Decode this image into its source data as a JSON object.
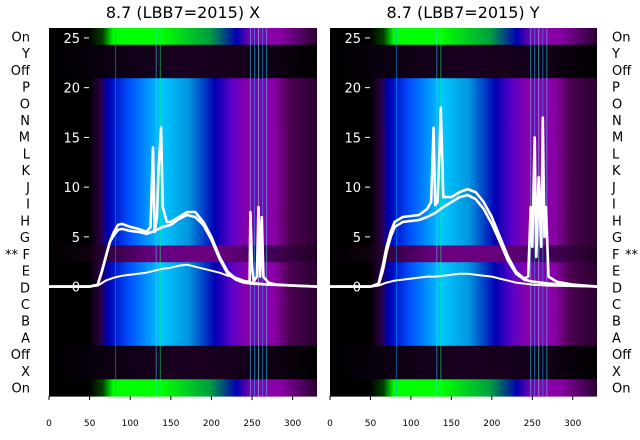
{
  "chart_data": [
    {
      "type": "heatmap",
      "title": "8.7 (LBB7=2015) X",
      "row_labels": [
        "On",
        "Y",
        "Off",
        "P",
        "O",
        "N",
        "M",
        "L",
        "K",
        "J",
        "I",
        "H",
        "G",
        "F",
        "E",
        "D",
        "C",
        "B",
        "A",
        "Off",
        "X",
        "On"
      ],
      "marked_row": "F",
      "marker_text": "**",
      "xlim": [
        0,
        330
      ],
      "x_ticks": [
        0,
        50,
        100,
        150,
        200,
        250,
        300
      ],
      "ylim": [
        -11,
        26
      ],
      "y_ticks": [
        0,
        5,
        10,
        15,
        20,
        25
      ],
      "colormap": [
        "#000000",
        "#4b0050",
        "#8a00a8",
        "#0000b4",
        "#0050ff",
        "#00c8ff",
        "#00ff00"
      ],
      "series": [
        {
          "values": [
            [
              0,
              0
            ],
            [
              50,
              0
            ],
            [
              60,
              0.2
            ],
            [
              65,
              1.5
            ],
            [
              70,
              3
            ],
            [
              75,
              4.5
            ],
            [
              80,
              5.5
            ],
            [
              85,
              6.2
            ],
            [
              90,
              6.3
            ],
            [
              100,
              6
            ],
            [
              110,
              5.8
            ],
            [
              120,
              5.5
            ],
            [
              125,
              6
            ],
            [
              128,
              14
            ],
            [
              130,
              5.5
            ],
            [
              133,
              7
            ],
            [
              135,
              12
            ],
            [
              138,
              16
            ],
            [
              140,
              8
            ],
            [
              145,
              6.5
            ],
            [
              150,
              6.5
            ],
            [
              160,
              7
            ],
            [
              170,
              7.5
            ],
            [
              180,
              7.5
            ],
            [
              190,
              6.5
            ],
            [
              200,
              5
            ],
            [
              210,
              3
            ],
            [
              220,
              1.5
            ],
            [
              230,
              0.8
            ],
            [
              240,
              0.5
            ],
            [
              247,
              0.5
            ],
            [
              248,
              7.5
            ],
            [
              250,
              2
            ],
            [
              252,
              0.5
            ],
            [
              256,
              1
            ],
            [
              258,
              8
            ],
            [
              260,
              1
            ],
            [
              262,
              7
            ],
            [
              264,
              1
            ],
            [
              270,
              0.4
            ],
            [
              280,
              0.2
            ],
            [
              300,
              0.1
            ],
            [
              330,
              0
            ]
          ]
        },
        {
          "values": [
            [
              0,
              0
            ],
            [
              50,
              0
            ],
            [
              60,
              0.2
            ],
            [
              65,
              1.5
            ],
            [
              70,
              3
            ],
            [
              75,
              4.5
            ],
            [
              80,
              5.2
            ],
            [
              85,
              5.7
            ],
            [
              90,
              5.8
            ],
            [
              100,
              5.6
            ],
            [
              110,
              5.5
            ],
            [
              120,
              5.3
            ],
            [
              130,
              5.6
            ],
            [
              140,
              6
            ],
            [
              150,
              6.2
            ],
            [
              160,
              6.8
            ],
            [
              170,
              7.2
            ],
            [
              180,
              7
            ],
            [
              190,
              6.2
            ],
            [
              200,
              4.7
            ],
            [
              210,
              2.8
            ],
            [
              220,
              1.3
            ],
            [
              230,
              0.7
            ],
            [
              240,
              0.4
            ],
            [
              250,
              0.3
            ],
            [
              270,
              0.2
            ],
            [
              300,
              0.1
            ],
            [
              330,
              0
            ]
          ]
        },
        {
          "values": [
            [
              0,
              0
            ],
            [
              50,
              0
            ],
            [
              60,
              0.1
            ],
            [
              70,
              0.6
            ],
            [
              80,
              0.9
            ],
            [
              90,
              1.1
            ],
            [
              100,
              1.2
            ],
            [
              110,
              1.3
            ],
            [
              120,
              1.4
            ],
            [
              130,
              1.6
            ],
            [
              140,
              1.8
            ],
            [
              150,
              1.9
            ],
            [
              160,
              2.1
            ],
            [
              170,
              2.2
            ],
            [
              180,
              2
            ],
            [
              190,
              1.8
            ],
            [
              200,
              1.6
            ],
            [
              210,
              1.4
            ],
            [
              220,
              1.1
            ],
            [
              230,
              0.9
            ],
            [
              240,
              0.6
            ],
            [
              250,
              0.4
            ],
            [
              260,
              0.3
            ],
            [
              270,
              0.2
            ],
            [
              300,
              0.1
            ],
            [
              330,
              0
            ]
          ]
        }
      ]
    },
    {
      "type": "heatmap",
      "title": "8.7 (LBB7=2015) Y",
      "row_labels": [
        "On",
        "Y",
        "Off",
        "P",
        "O",
        "N",
        "M",
        "L",
        "K",
        "J",
        "I",
        "H",
        "G",
        "F",
        "E",
        "D",
        "C",
        "B",
        "A",
        "Off",
        "X",
        "On"
      ],
      "marked_row": "F",
      "marker_text": "**",
      "xlim": [
        0,
        330
      ],
      "x_ticks": [
        0,
        50,
        100,
        150,
        200,
        250,
        300
      ],
      "ylim": [
        -11,
        26
      ],
      "y_ticks": [
        0,
        5,
        10,
        15,
        20,
        25
      ],
      "colormap": [
        "#000000",
        "#4b0050",
        "#8a00a8",
        "#0000b4",
        "#0050ff",
        "#00c8ff",
        "#00ff00"
      ],
      "series": [
        {
          "values": [
            [
              0,
              0
            ],
            [
              50,
              0
            ],
            [
              60,
              0.3
            ],
            [
              65,
              2
            ],
            [
              70,
              4
            ],
            [
              75,
              5.5
            ],
            [
              80,
              6.5
            ],
            [
              90,
              7
            ],
            [
              100,
              7.1
            ],
            [
              110,
              7.2
            ],
            [
              115,
              7.5
            ],
            [
              120,
              7.8
            ],
            [
              125,
              8.5
            ],
            [
              128,
              16
            ],
            [
              130,
              8.2
            ],
            [
              133,
              8.5
            ],
            [
              135,
              13
            ],
            [
              137,
              18
            ],
            [
              140,
              9
            ],
            [
              150,
              9
            ],
            [
              160,
              9.5
            ],
            [
              170,
              9.8
            ],
            [
              180,
              9.5
            ],
            [
              190,
              8.5
            ],
            [
              200,
              7
            ],
            [
              210,
              5
            ],
            [
              220,
              3
            ],
            [
              230,
              1.5
            ],
            [
              240,
              0.8
            ],
            [
              245,
              1
            ],
            [
              248,
              8
            ],
            [
              250,
              4
            ],
            [
              253,
              15
            ],
            [
              255,
              3
            ],
            [
              258,
              11
            ],
            [
              261,
              4
            ],
            [
              263,
              17
            ],
            [
              265,
              5
            ],
            [
              267,
              8
            ],
            [
              270,
              1
            ],
            [
              280,
              0.5
            ],
            [
              300,
              0.2
            ],
            [
              330,
              0
            ]
          ]
        },
        {
          "values": [
            [
              0,
              0
            ],
            [
              50,
              0
            ],
            [
              60,
              0.2
            ],
            [
              65,
              1.5
            ],
            [
              70,
              3.5
            ],
            [
              75,
              5
            ],
            [
              80,
              6
            ],
            [
              90,
              6.5
            ],
            [
              100,
              6.6
            ],
            [
              110,
              6.7
            ],
            [
              120,
              7
            ],
            [
              130,
              7.4
            ],
            [
              140,
              8
            ],
            [
              150,
              8.5
            ],
            [
              160,
              9
            ],
            [
              170,
              9.2
            ],
            [
              180,
              8.8
            ],
            [
              190,
              7.8
            ],
            [
              200,
              6.3
            ],
            [
              210,
              4.5
            ],
            [
              220,
              2.6
            ],
            [
              230,
              1.3
            ],
            [
              240,
              0.7
            ],
            [
              250,
              0.5
            ],
            [
              270,
              0.3
            ],
            [
              300,
              0.1
            ],
            [
              330,
              0
            ]
          ]
        },
        {
          "values": [
            [
              0,
              0
            ],
            [
              50,
              0
            ],
            [
              60,
              0.1
            ],
            [
              70,
              0.4
            ],
            [
              80,
              0.6
            ],
            [
              90,
              0.7
            ],
            [
              100,
              0.8
            ],
            [
              110,
              0.9
            ],
            [
              120,
              1
            ],
            [
              130,
              1
            ],
            [
              140,
              1.1
            ],
            [
              150,
              1.2
            ],
            [
              160,
              1.3
            ],
            [
              170,
              1.3
            ],
            [
              180,
              1.2
            ],
            [
              190,
              1.1
            ],
            [
              200,
              1
            ],
            [
              210,
              0.8
            ],
            [
              220,
              0.6
            ],
            [
              230,
              0.4
            ],
            [
              240,
              0.3
            ],
            [
              250,
              0.2
            ],
            [
              270,
              0.1
            ],
            [
              300,
              0.05
            ],
            [
              330,
              0
            ]
          ]
        }
      ]
    }
  ]
}
